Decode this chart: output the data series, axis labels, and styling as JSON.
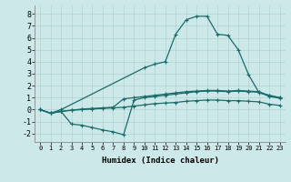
{
  "xlabel": "Humidex (Indice chaleur)",
  "bg_color": "#cce8e8",
  "line_color": "#1a6b6b",
  "xlim": [
    -0.5,
    23.5
  ],
  "ylim": [
    -2.7,
    8.7
  ],
  "xticks": [
    0,
    1,
    2,
    3,
    4,
    5,
    6,
    7,
    8,
    9,
    10,
    11,
    12,
    13,
    14,
    15,
    16,
    17,
    18,
    19,
    20,
    21,
    22,
    23
  ],
  "yticks": [
    -2,
    -1,
    0,
    1,
    2,
    3,
    4,
    5,
    6,
    7,
    8
  ],
  "curves": [
    {
      "x": [
        0,
        1,
        2,
        10,
        11,
        12,
        13,
        14,
        15,
        16,
        17,
        18,
        19,
        20,
        21,
        22,
        23
      ],
      "y": [
        0,
        -0.3,
        0.0,
        3.5,
        3.8,
        4.0,
        6.3,
        7.5,
        7.8,
        7.8,
        6.3,
        6.2,
        5.0,
        2.9,
        1.4,
        1.2,
        1.0
      ]
    },
    {
      "x": [
        0,
        1,
        2,
        3,
        4,
        5,
        6,
        7,
        8,
        9,
        10,
        11,
        12,
        13,
        14,
        15,
        16,
        17,
        18,
        19,
        20,
        21,
        22,
        23
      ],
      "y": [
        0,
        -0.3,
        -0.15,
        -0.05,
        0.05,
        0.1,
        0.15,
        0.2,
        0.9,
        1.0,
        1.1,
        1.2,
        1.3,
        1.4,
        1.5,
        1.55,
        1.6,
        1.6,
        1.55,
        1.6,
        1.55,
        1.5,
        1.15,
        1.0
      ]
    },
    {
      "x": [
        0,
        1,
        2,
        3,
        4,
        5,
        6,
        7,
        8,
        9,
        10,
        11,
        12,
        13,
        14,
        15,
        16,
        17,
        18,
        19,
        20,
        21,
        22,
        23
      ],
      "y": [
        0,
        -0.3,
        -0.15,
        -1.2,
        -1.3,
        -1.5,
        -1.7,
        -1.85,
        -2.1,
        0.8,
        1.0,
        1.1,
        1.2,
        1.3,
        1.4,
        1.5,
        1.55,
        1.55,
        1.5,
        1.55,
        1.5,
        1.45,
        1.1,
        0.95
      ]
    },
    {
      "x": [
        0,
        1,
        2,
        3,
        4,
        5,
        6,
        7,
        8,
        9,
        10,
        11,
        12,
        13,
        14,
        15,
        16,
        17,
        18,
        19,
        20,
        21,
        22,
        23
      ],
      "y": [
        0,
        -0.3,
        -0.15,
        -0.05,
        0.0,
        0.05,
        0.1,
        0.15,
        0.2,
        0.3,
        0.4,
        0.5,
        0.55,
        0.6,
        0.7,
        0.75,
        0.8,
        0.8,
        0.75,
        0.75,
        0.7,
        0.65,
        0.45,
        0.35
      ]
    }
  ]
}
